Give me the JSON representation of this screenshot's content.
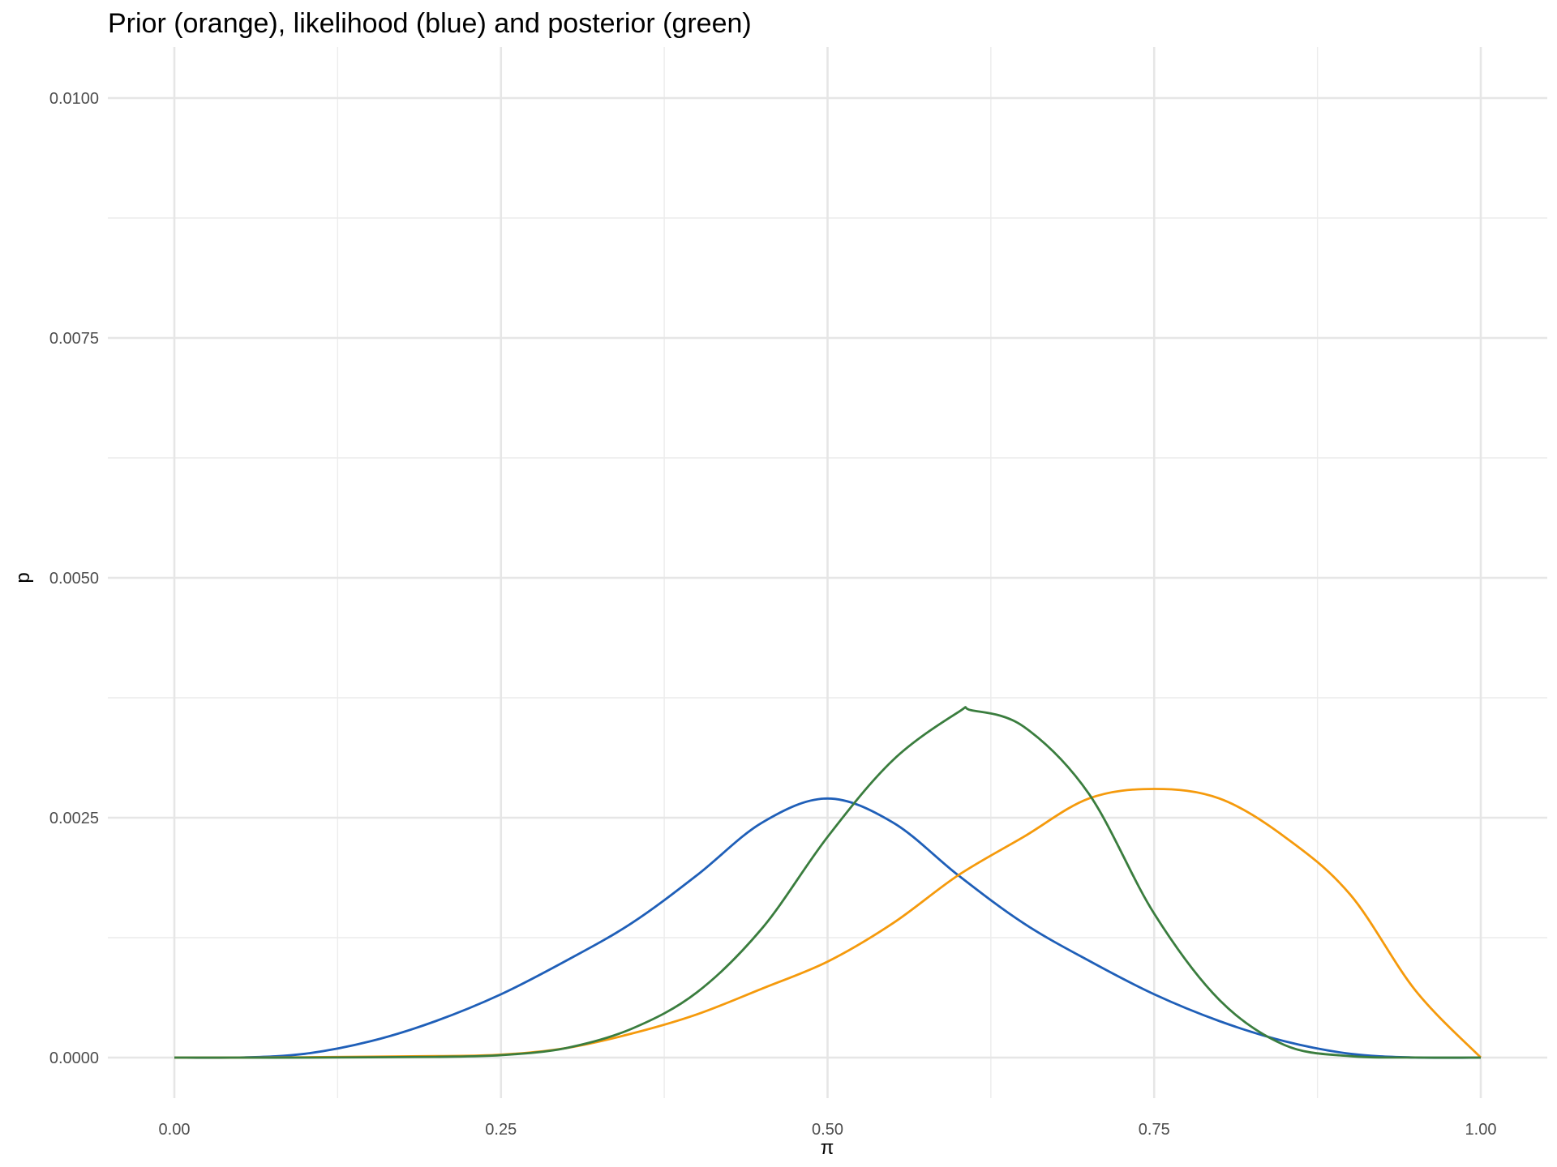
{
  "chart_data": {
    "type": "line",
    "title": "Prior (orange), likelihood (blue) and posterior (green)",
    "xlabel": "π",
    "ylabel": "p",
    "xlim": [
      0,
      1
    ],
    "ylim": [
      0,
      0.0105
    ],
    "x_ticks": [
      0,
      0.25,
      0.5,
      0.75,
      1
    ],
    "x_tick_labels": [
      "0.00",
      "0.25",
      "0.50",
      "0.75",
      "1.00"
    ],
    "y_ticks": [
      0,
      0.0025,
      0.005,
      0.0075,
      0.01
    ],
    "y_tick_labels": [
      "0.0000",
      "0.0025",
      "0.0050",
      "0.0075",
      "0.0100"
    ],
    "grid": true,
    "legend": "none",
    "series": [
      {
        "color": "#1f5fb8",
        "x": [
          0,
          0.05,
          0.1,
          0.15,
          0.2,
          0.25,
          0.3,
          0.35,
          0.4,
          0.45,
          0.5,
          0.55,
          0.6,
          0.65,
          0.7,
          0.75,
          0.8,
          0.85,
          0.9,
          0.95,
          1
        ],
        "y": [
          0,
          1e-06,
          4e-05,
          0.00017,
          0.00038,
          0.00066,
          0.00101,
          0.0014,
          0.0019,
          0.00245,
          0.0027,
          0.00245,
          0.0019,
          0.0014,
          0.00101,
          0.00066,
          0.00038,
          0.00017,
          4e-05,
          1e-06,
          0
        ]
      },
      {
        "color": "#f59a0c",
        "x": [
          0,
          0.05,
          0.1,
          0.15,
          0.2,
          0.25,
          0.3,
          0.35,
          0.4,
          0.45,
          0.5,
          0.55,
          0.6,
          0.65,
          0.7,
          0.75,
          0.8,
          0.85,
          0.9,
          0.95,
          1
        ],
        "y": [
          0,
          0,
          3e-06,
          9e-06,
          1.5e-05,
          3e-05,
          0.0001,
          0.00025,
          0.00045,
          0.00072,
          0.001,
          0.0014,
          0.0019,
          0.0023,
          0.0027,
          0.0028,
          0.0027,
          0.0023,
          0.0017,
          0.0007,
          0
        ]
      },
      {
        "color": "#3a7d3e",
        "x": [
          0,
          0.05,
          0.1,
          0.15,
          0.2,
          0.25,
          0.3,
          0.35,
          0.4,
          0.45,
          0.5,
          0.55,
          0.6,
          0.61,
          0.65,
          0.7,
          0.75,
          0.8,
          0.85,
          0.9,
          0.95,
          1
        ],
        "y": [
          0,
          0,
          0,
          3e-06,
          8e-06,
          2.5e-05,
          0.0001,
          0.0003,
          0.00068,
          0.00135,
          0.0023,
          0.0031,
          0.0036,
          0.00362,
          0.00345,
          0.00275,
          0.0015,
          0.0006,
          0.00013,
          1.5e-05,
          1e-06,
          0
        ]
      }
    ]
  }
}
